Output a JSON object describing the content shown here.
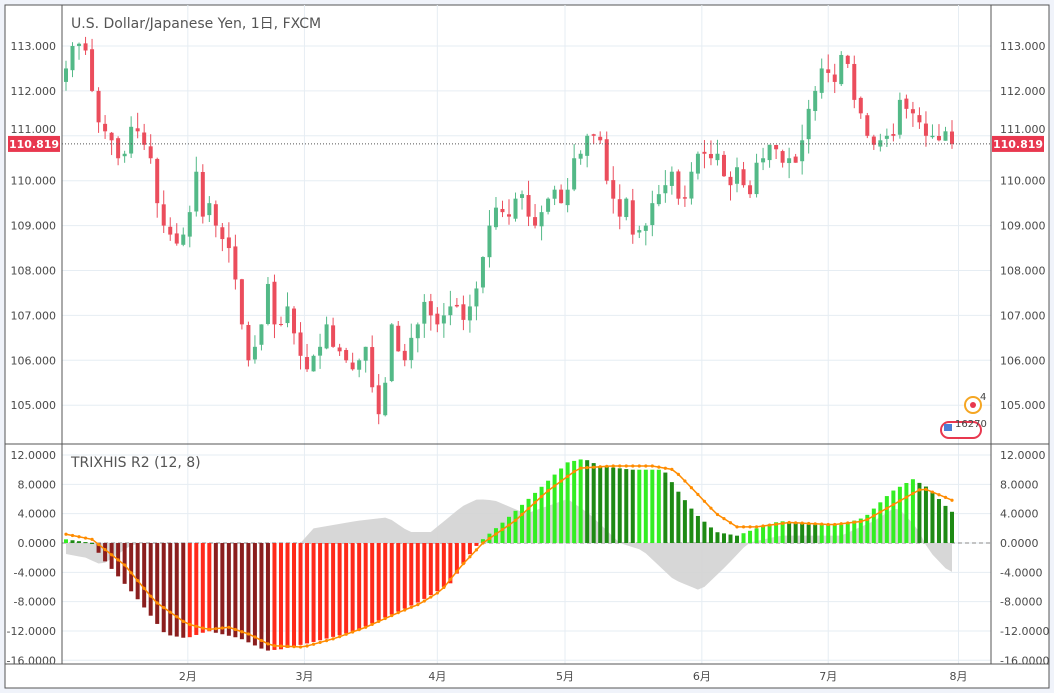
{
  "chart_data": [
    {
      "type": "candlestick",
      "title": "U.S. Dollar/Japanese Yen, 1日, FXCM",
      "last_price": "110.819",
      "y_ticks": [
        "113.000",
        "112.000",
        "111.000",
        "110.000",
        "109.000",
        "108.000",
        "107.000",
        "106.000",
        "105.000"
      ],
      "ylim": [
        104.4,
        113.9
      ],
      "x_ticks": [
        "2月",
        "3月",
        "4月",
        "5月",
        "6月",
        "7月",
        "8月"
      ],
      "x_tick_index": [
        18.7,
        36.6,
        57,
        76.6,
        97.6,
        117,
        137
      ],
      "closes": [
        112.5,
        113.0,
        113.05,
        112.9,
        112.0,
        111.3,
        111.1,
        110.9,
        110.5,
        110.6,
        111.2,
        111.1,
        110.8,
        110.5,
        109.5,
        109.0,
        108.8,
        108.6,
        108.8,
        109.3,
        110.2,
        109.2,
        109.5,
        109.0,
        108.7,
        108.5,
        107.8,
        106.8,
        106.0,
        106.3,
        106.8,
        107.7,
        106.8,
        106.8,
        107.2,
        106.6,
        106.1,
        105.8,
        106.1,
        106.3,
        106.8,
        106.3,
        106.2,
        106.0,
        105.8,
        106.0,
        106.3,
        105.4,
        104.8,
        105.5,
        106.8,
        106.2,
        106.0,
        106.5,
        106.8,
        107.3,
        107.0,
        106.8,
        107.0,
        107.2,
        107.2,
        106.9,
        107.2,
        107.6,
        108.3,
        109.0,
        109.4,
        109.3,
        109.2,
        109.6,
        109.7,
        109.2,
        109.0,
        109.3,
        109.6,
        109.8,
        109.5,
        109.8,
        110.5,
        110.6,
        111.0,
        111.0,
        110.9,
        110.0,
        109.6,
        109.2,
        109.6,
        108.8,
        108.9,
        109.0,
        109.5,
        109.7,
        109.9,
        110.2,
        109.6,
        109.6,
        110.2,
        110.6,
        110.6,
        110.5,
        110.6,
        110.1,
        109.9,
        110.3,
        109.9,
        109.7,
        110.4,
        110.5,
        110.8,
        110.7,
        110.4,
        110.5,
        110.4,
        110.9,
        111.6,
        112.0,
        112.5,
        112.4,
        112.2,
        112.8,
        112.6,
        111.8,
        111.5,
        111.0,
        110.8,
        110.9,
        111.0,
        111.0,
        111.8,
        111.6,
        111.5,
        111.3,
        111.0,
        111.0,
        110.9,
        111.1,
        110.82
      ],
      "colors": {
        "up": "#53b987",
        "down": "#eb4d5c"
      },
      "badges": {
        "events_count": "4",
        "calendar": "16270"
      }
    },
    {
      "type": "histogram+line",
      "title": "TRIXHIS R2 (12, 8)",
      "y_ticks": [
        "12.0000",
        "8.0000",
        "4.0000",
        "0.0000",
        "-4.0000",
        "-8.0000",
        "-12.0000",
        "-16.0000"
      ],
      "ylim": [
        -16.2,
        13.5
      ],
      "histogram_keypoints": [
        [
          0,
          0.5
        ],
        [
          4,
          0
        ],
        [
          5.5,
          -2
        ],
        [
          10.4,
          -7
        ],
        [
          15.3,
          -12.5
        ],
        [
          18.5,
          -13
        ],
        [
          21.8,
          -12
        ],
        [
          26.7,
          -13
        ],
        [
          30.7,
          -14.7
        ],
        [
          33,
          -14.5
        ],
        [
          38,
          -13.5
        ],
        [
          44.5,
          -12
        ],
        [
          49.4,
          -10
        ],
        [
          54.3,
          -8
        ],
        [
          59,
          -5.5
        ],
        [
          62.4,
          -1
        ],
        [
          63.7,
          0.3
        ],
        [
          67.3,
          3
        ],
        [
          72.2,
          7
        ],
        [
          77,
          11
        ],
        [
          79.5,
          11.5
        ],
        [
          82,
          10.5
        ],
        [
          86.8,
          10
        ],
        [
          91.7,
          10
        ],
        [
          94,
          7
        ],
        [
          96.6,
          4
        ],
        [
          99.8,
          1.5
        ],
        [
          103,
          1
        ],
        [
          106,
          2
        ],
        [
          109.6,
          3
        ],
        [
          114.5,
          2.5
        ],
        [
          119,
          2.5
        ],
        [
          122.6,
          3.5
        ],
        [
          126.7,
          7
        ],
        [
          130,
          8.7
        ],
        [
          132.4,
          7.5
        ],
        [
          135.6,
          4.5
        ],
        [
          138.9,
          2.5
        ],
        [
          142,
          1
        ],
        [
          144,
          0.2
        ]
      ],
      "signal_keypoints": [
        [
          0,
          1.2
        ],
        [
          4,
          0.5
        ],
        [
          9,
          -3
        ],
        [
          13.7,
          -8
        ],
        [
          18.5,
          -11
        ],
        [
          21.8,
          -11.8
        ],
        [
          25,
          -11.5
        ],
        [
          28.3,
          -12.5
        ],
        [
          31.5,
          -14
        ],
        [
          36.4,
          -14.2
        ],
        [
          41.3,
          -13
        ],
        [
          46,
          -11.5
        ],
        [
          51,
          -9.5
        ],
        [
          54.3,
          -8.3
        ],
        [
          57.6,
          -6.5
        ],
        [
          60.8,
          -3
        ],
        [
          64,
          0
        ],
        [
          68.9,
          3
        ],
        [
          73.8,
          7
        ],
        [
          78.7,
          10.2
        ],
        [
          83.6,
          10.5
        ],
        [
          90,
          10.5
        ],
        [
          93.3,
          10
        ],
        [
          96.6,
          7
        ],
        [
          99.8,
          4
        ],
        [
          103,
          2.2
        ],
        [
          106,
          2.2
        ],
        [
          111,
          2.8
        ],
        [
          117.7,
          2.5
        ],
        [
          122.6,
          3
        ],
        [
          127.5,
          5.5
        ],
        [
          131.5,
          7.5
        ],
        [
          135.6,
          6
        ],
        [
          140.5,
          4
        ],
        [
          144,
          2
        ]
      ],
      "area_keypoints": [
        [
          0,
          -1.5
        ],
        [
          3,
          -2
        ],
        [
          5.5,
          -3
        ],
        [
          8,
          -1.5
        ],
        [
          10,
          -0.3
        ],
        [
          12,
          0
        ],
        [
          36,
          0
        ],
        [
          38,
          2
        ],
        [
          44.5,
          3
        ],
        [
          49.4,
          3.5
        ],
        [
          52.7,
          1.5
        ],
        [
          56,
          1.5
        ],
        [
          60.8,
          5
        ],
        [
          63.2,
          6
        ],
        [
          65.8,
          5.8
        ],
        [
          70.6,
          4
        ],
        [
          77,
          6
        ],
        [
          80.3,
          4
        ],
        [
          85,
          0
        ],
        [
          88.5,
          -1
        ],
        [
          93.3,
          -5
        ],
        [
          97.4,
          -6.5
        ],
        [
          101.5,
          -3
        ],
        [
          104.7,
          0
        ],
        [
          109.6,
          1
        ],
        [
          119,
          1
        ],
        [
          124,
          3
        ],
        [
          127.5,
          5
        ],
        [
          130.7,
          2
        ],
        [
          132.4,
          -1
        ],
        [
          135.6,
          -4
        ],
        [
          138.9,
          -3.5
        ],
        [
          144,
          -3.5
        ]
      ],
      "colors": {
        "neg_falling": "#8b1e1e",
        "neg_rising": "#ff2a1a",
        "pos_rising": "#33ee22",
        "pos_falling": "#1e8a14",
        "signal": "#ff8c00",
        "area": "#d3d3d3"
      }
    }
  ]
}
